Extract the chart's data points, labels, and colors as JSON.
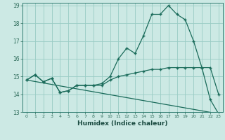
{
  "xlabel": "Humidex (Indice chaleur)",
  "background_color": "#cce9e4",
  "grid_color": "#99ccc4",
  "line_color": "#1a6b5a",
  "x_min": 0,
  "x_max": 23,
  "y_min": 13,
  "y_max": 19,
  "line1_x": [
    0,
    1,
    2,
    3,
    4,
    5,
    6,
    7,
    8,
    9,
    10,
    11,
    12,
    13,
    14,
    15,
    16,
    17,
    18,
    19,
    20,
    21,
    22,
    23
  ],
  "line1_y": [
    14.8,
    15.1,
    14.7,
    14.9,
    14.1,
    14.2,
    14.5,
    14.5,
    14.5,
    14.6,
    15.0,
    16.0,
    16.6,
    16.3,
    17.3,
    18.5,
    18.5,
    19.0,
    18.5,
    18.2,
    17.0,
    15.5,
    15.5,
    14.0
  ],
  "line2_x": [
    0,
    1,
    2,
    3,
    4,
    5,
    6,
    7,
    8,
    9,
    10,
    11,
    12,
    13,
    14,
    15,
    16,
    17,
    18,
    19,
    20,
    21,
    22,
    23
  ],
  "line2_y": [
    14.8,
    15.1,
    14.7,
    14.9,
    14.1,
    14.2,
    14.5,
    14.5,
    14.5,
    14.5,
    14.8,
    15.0,
    15.1,
    15.2,
    15.3,
    15.4,
    15.4,
    15.5,
    15.5,
    15.5,
    15.5,
    15.5,
    13.7,
    12.9
  ],
  "line3_x": [
    0,
    23
  ],
  "line3_y": [
    14.8,
    12.9
  ]
}
